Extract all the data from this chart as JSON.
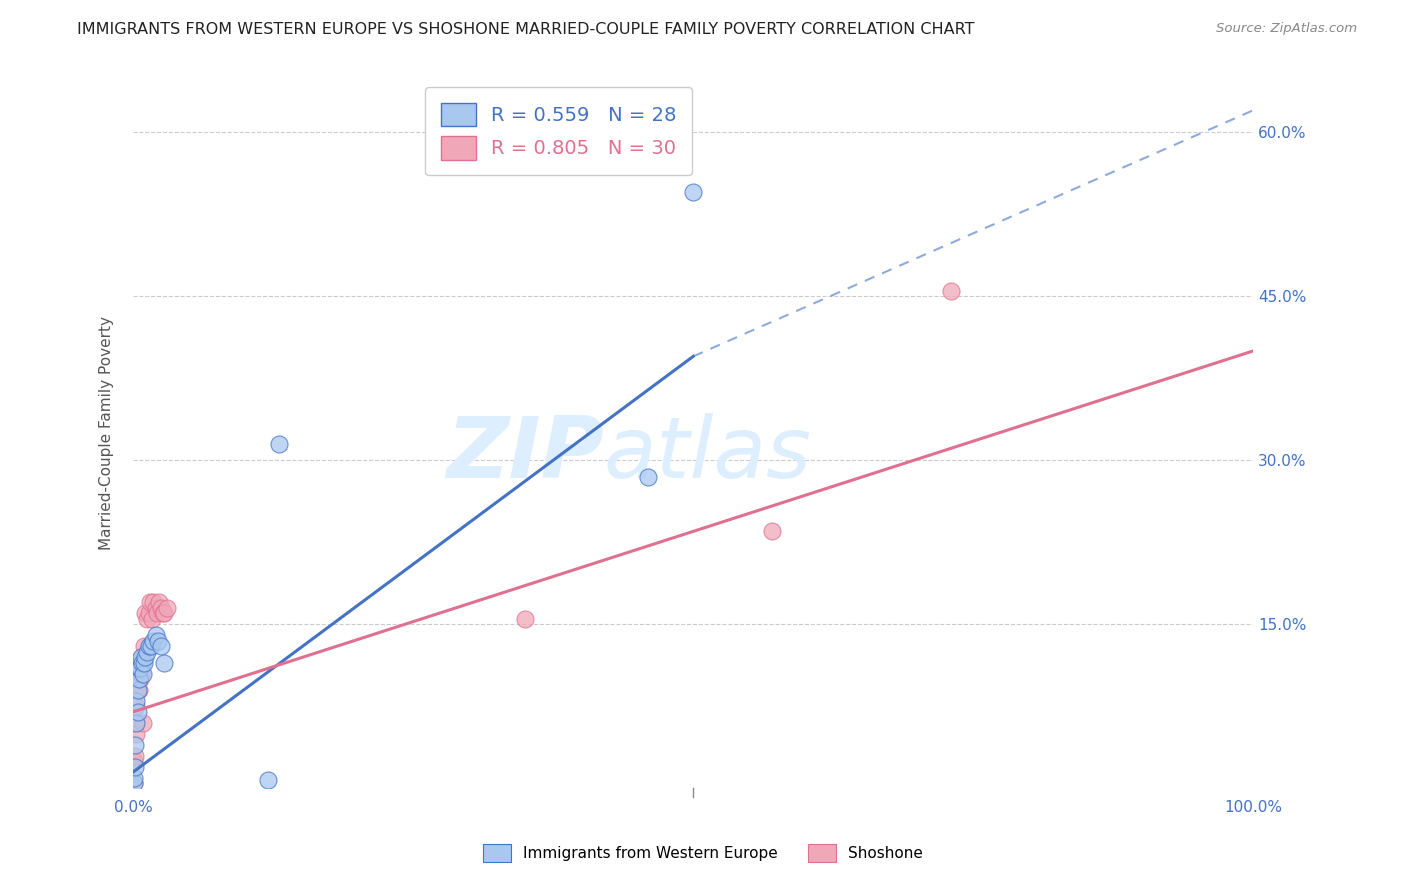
{
  "title": "IMMIGRANTS FROM WESTERN EUROPE VS SHOSHONE MARRIED-COUPLE FAMILY POVERTY CORRELATION CHART",
  "source": "Source: ZipAtlas.com",
  "ylabel": "Married-Couple Family Poverty",
  "xlim": [
    0,
    1.0
  ],
  "ylim": [
    0,
    0.65
  ],
  "xticks": [
    0.0,
    0.25,
    0.5,
    0.75,
    1.0
  ],
  "xticklabels": [
    "0.0%",
    "",
    "",
    "",
    "100.0%"
  ],
  "yticks": [
    0.0,
    0.15,
    0.3,
    0.45,
    0.6
  ],
  "yticklabels": [
    "",
    "15.0%",
    "30.0%",
    "45.0%",
    "60.0%"
  ],
  "legend_blue_r": "R = 0.559",
  "legend_blue_n": "N = 28",
  "legend_pink_r": "R = 0.805",
  "legend_pink_n": "N = 30",
  "legend_label_blue": "Immigrants from Western Europe",
  "legend_label_pink": "Shoshone",
  "blue_scatter_x": [
    0.001,
    0.001,
    0.002,
    0.002,
    0.003,
    0.003,
    0.004,
    0.004,
    0.005,
    0.005,
    0.006,
    0.007,
    0.008,
    0.009,
    0.01,
    0.011,
    0.012,
    0.014,
    0.016,
    0.018,
    0.02,
    0.022,
    0.025,
    0.028,
    0.12,
    0.13,
    0.46,
    0.5
  ],
  "blue_scatter_y": [
    0.005,
    0.01,
    0.02,
    0.04,
    0.06,
    0.08,
    0.07,
    0.09,
    0.1,
    0.11,
    0.11,
    0.12,
    0.115,
    0.105,
    0.115,
    0.12,
    0.125,
    0.13,
    0.13,
    0.135,
    0.14,
    0.135,
    0.13,
    0.115,
    0.008,
    0.315,
    0.285,
    0.545
  ],
  "pink_scatter_x": [
    0.001,
    0.001,
    0.002,
    0.002,
    0.003,
    0.003,
    0.004,
    0.005,
    0.005,
    0.006,
    0.007,
    0.008,
    0.009,
    0.01,
    0.011,
    0.012,
    0.014,
    0.015,
    0.017,
    0.018,
    0.02,
    0.021,
    0.023,
    0.025,
    0.027,
    0.028,
    0.03,
    0.35,
    0.57,
    0.73
  ],
  "pink_scatter_y": [
    0.005,
    0.025,
    0.03,
    0.06,
    0.05,
    0.075,
    0.09,
    0.09,
    0.11,
    0.1,
    0.105,
    0.12,
    0.06,
    0.13,
    0.16,
    0.155,
    0.16,
    0.17,
    0.155,
    0.17,
    0.165,
    0.16,
    0.17,
    0.165,
    0.16,
    0.16,
    0.165,
    0.155,
    0.235,
    0.455
  ],
  "blue_solid_line_x": [
    0.0,
    0.5
  ],
  "blue_solid_line_y": [
    0.015,
    0.395
  ],
  "blue_dashed_line_x": [
    0.5,
    1.0
  ],
  "blue_dashed_line_y": [
    0.395,
    0.62
  ],
  "pink_line_x": [
    0.0,
    1.0
  ],
  "pink_line_y": [
    0.07,
    0.4
  ],
  "title_color": "#222222",
  "axis_label_color": "#555555",
  "blue_color": "#a8c8f0",
  "pink_color": "#f0a8b8",
  "blue_line_color": "#4472c4",
  "pink_line_color": "#e07090",
  "blue_tick_color": "#4472c4",
  "grid_color": "#cccccc",
  "watermark_zip": "ZIP",
  "watermark_atlas": "atlas",
  "watermark_color": "#ddeeff",
  "background_color": "#ffffff"
}
